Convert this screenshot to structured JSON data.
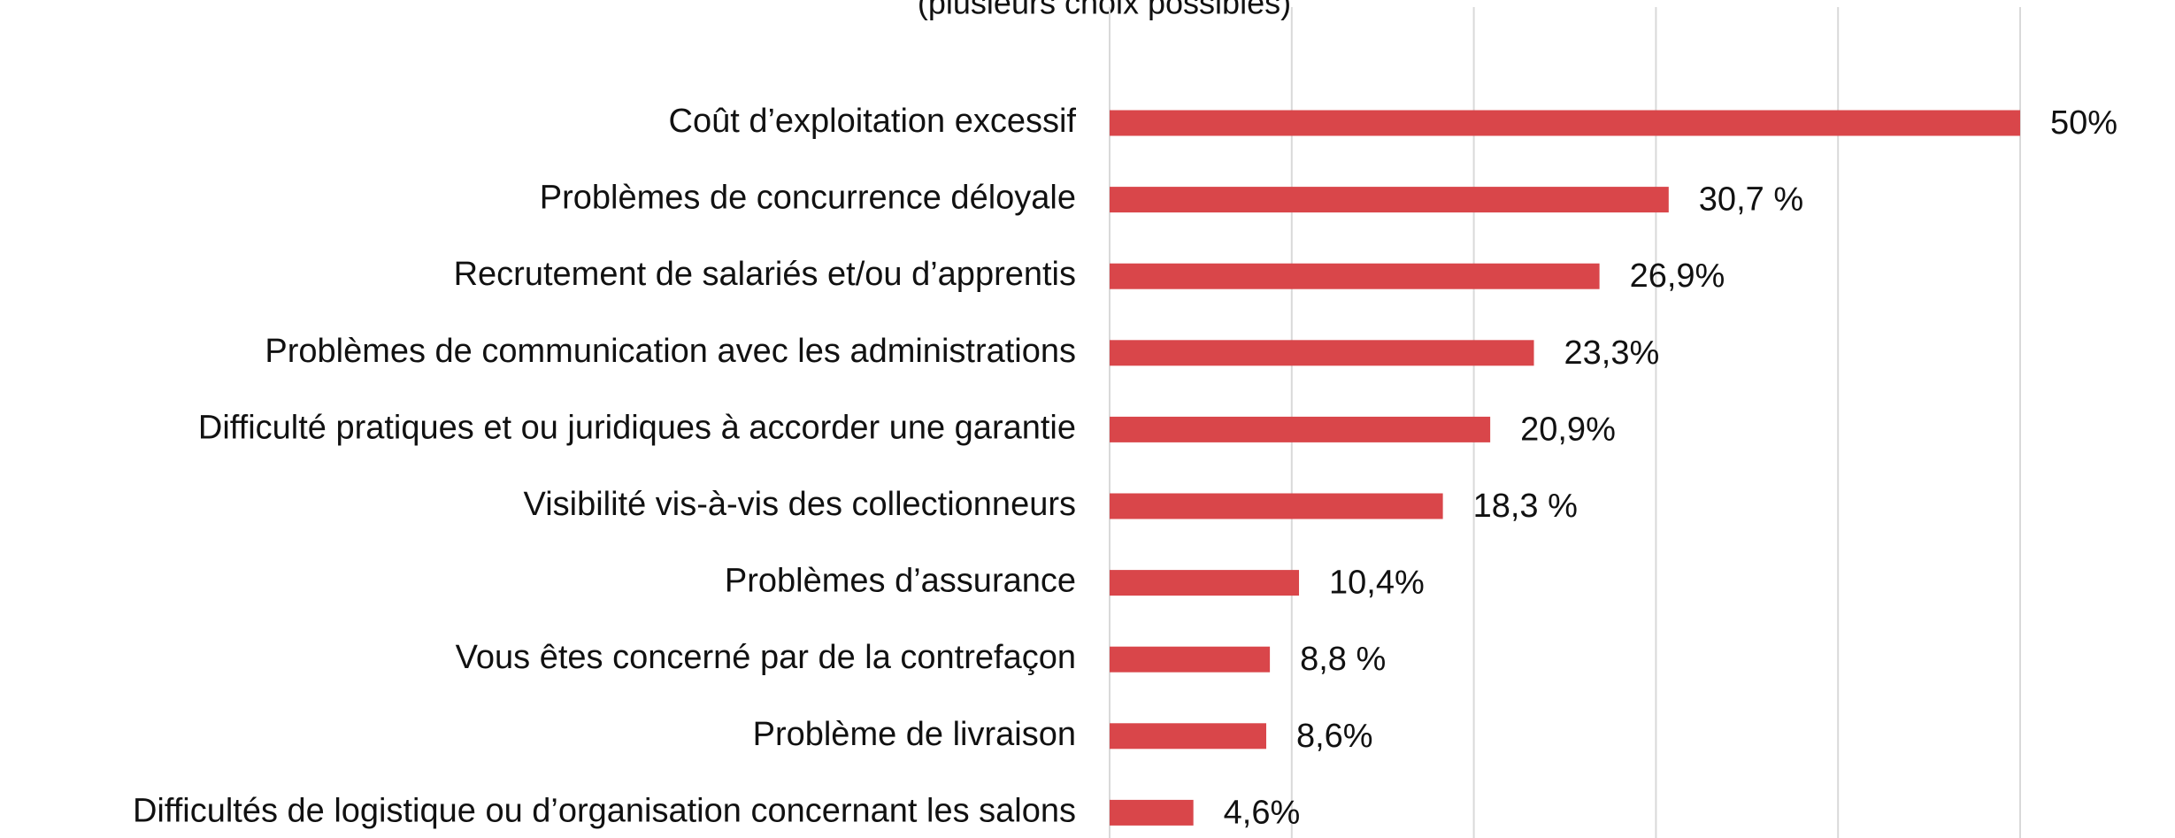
{
  "chart_data": {
    "type": "barh",
    "subtitle": "(plusieurs choix possibles)",
    "categories": [
      "Coût d’exploitation  excessif",
      "Problèmes de concurrence déloyale",
      "Recrutement de salariés  et/ou d’apprentis",
      "Problèmes de communication avec les administrations",
      "Difficulté pratiques et ou juridiques à accorder une garantie",
      "Visibilité vis-à-vis des collectionneurs",
      "Problèmes  d’assurance",
      "Vous êtes concerné par de la contrefaçon",
      "Problème de livraison",
      "Difficultés de logistique  ou d’organisation  concernant les salons"
    ],
    "values": [
      50,
      30.7,
      26.9,
      23.3,
      20.9,
      18.3,
      10.4,
      8.8,
      8.6,
      4.6
    ],
    "value_labels": [
      "50%",
      "30,7 %",
      "26,9%",
      "23,3%",
      "20,9%",
      "18,3 %",
      "10,4%",
      "8,8 %",
      "8,6%",
      "4,6%"
    ],
    "color": "#d9464a",
    "xlim": [
      0,
      50
    ],
    "xticks": [
      0,
      10,
      20,
      30,
      40,
      50
    ],
    "grid": true
  }
}
